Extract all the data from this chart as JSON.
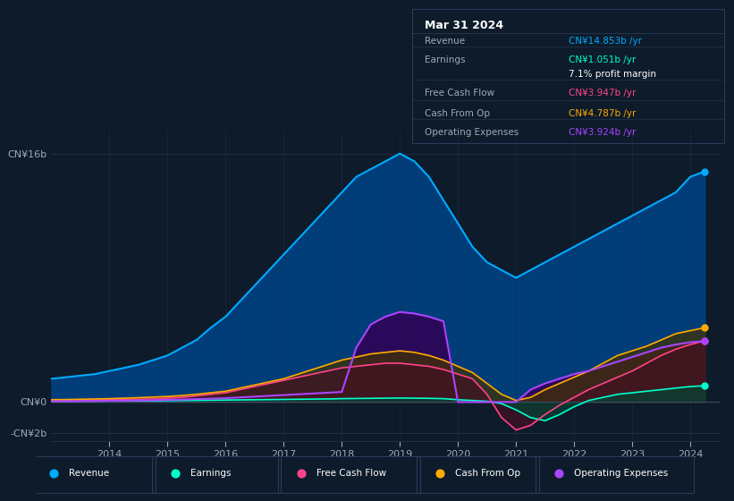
{
  "bg_color": "#0d1b2a",
  "plot_bg_color": "#0d1b2a",
  "grid_color": "#1e3048",
  "text_color": "#a0aab8",
  "title_color": "#ffffff",
  "years": [
    2013.0,
    2013.25,
    2013.5,
    2013.75,
    2014.0,
    2014.25,
    2014.5,
    2014.75,
    2015.0,
    2015.25,
    2015.5,
    2015.75,
    2016.0,
    2016.25,
    2016.5,
    2016.75,
    2017.0,
    2017.25,
    2017.5,
    2017.75,
    2018.0,
    2018.25,
    2018.5,
    2018.75,
    2019.0,
    2019.25,
    2019.5,
    2019.75,
    2020.0,
    2020.25,
    2020.5,
    2020.75,
    2021.0,
    2021.25,
    2021.5,
    2021.75,
    2022.0,
    2022.25,
    2022.5,
    2022.75,
    2023.0,
    2023.25,
    2023.5,
    2023.75,
    2024.0,
    2024.25
  ],
  "revenue": [
    1.5,
    1.6,
    1.7,
    1.8,
    2.0,
    2.2,
    2.4,
    2.7,
    3.0,
    3.5,
    4.0,
    4.8,
    5.5,
    6.5,
    7.5,
    8.5,
    9.5,
    10.5,
    11.5,
    12.5,
    13.5,
    14.5,
    15.0,
    15.5,
    16.0,
    15.5,
    14.5,
    13.0,
    11.5,
    10.0,
    9.0,
    8.5,
    8.0,
    8.5,
    9.0,
    9.5,
    10.0,
    10.5,
    11.0,
    11.5,
    12.0,
    12.5,
    13.0,
    13.5,
    14.5,
    14.853
  ],
  "earnings": [
    0.05,
    0.05,
    0.06,
    0.06,
    0.07,
    0.07,
    0.08,
    0.08,
    0.09,
    0.1,
    0.11,
    0.12,
    0.13,
    0.14,
    0.15,
    0.16,
    0.17,
    0.18,
    0.19,
    0.2,
    0.22,
    0.23,
    0.24,
    0.25,
    0.26,
    0.25,
    0.24,
    0.22,
    0.15,
    0.1,
    0.05,
    -0.1,
    -0.5,
    -1.0,
    -1.2,
    -0.8,
    -0.3,
    0.1,
    0.3,
    0.5,
    0.6,
    0.7,
    0.8,
    0.9,
    1.0,
    1.051
  ],
  "free_cash_flow": [
    0.1,
    0.1,
    0.12,
    0.12,
    0.15,
    0.15,
    0.18,
    0.2,
    0.25,
    0.3,
    0.4,
    0.5,
    0.6,
    0.8,
    1.0,
    1.2,
    1.4,
    1.6,
    1.8,
    2.0,
    2.2,
    2.3,
    2.4,
    2.5,
    2.5,
    2.4,
    2.3,
    2.1,
    1.8,
    1.5,
    0.5,
    -1.0,
    -1.8,
    -1.5,
    -0.8,
    -0.2,
    0.3,
    0.8,
    1.2,
    1.6,
    2.0,
    2.5,
    3.0,
    3.4,
    3.7,
    3.947
  ],
  "cash_from_op": [
    0.15,
    0.16,
    0.18,
    0.2,
    0.22,
    0.25,
    0.28,
    0.32,
    0.36,
    0.42,
    0.5,
    0.6,
    0.7,
    0.9,
    1.1,
    1.3,
    1.5,
    1.8,
    2.1,
    2.4,
    2.7,
    2.9,
    3.1,
    3.2,
    3.3,
    3.2,
    3.0,
    2.7,
    2.3,
    1.9,
    1.2,
    0.5,
    0.1,
    0.3,
    0.8,
    1.2,
    1.6,
    2.0,
    2.5,
    3.0,
    3.3,
    3.6,
    4.0,
    4.4,
    4.6,
    4.787
  ],
  "operating_expenses": [
    0.05,
    0.05,
    0.06,
    0.07,
    0.08,
    0.09,
    0.1,
    0.12,
    0.14,
    0.16,
    0.19,
    0.22,
    0.25,
    0.3,
    0.35,
    0.4,
    0.45,
    0.5,
    0.55,
    0.6,
    0.65,
    3.5,
    5.0,
    5.5,
    5.8,
    5.7,
    5.5,
    5.2,
    0.0,
    0.0,
    0.0,
    0.0,
    0.0,
    0.8,
    1.2,
    1.5,
    1.8,
    2.0,
    2.3,
    2.6,
    2.9,
    3.2,
    3.5,
    3.7,
    3.85,
    3.924
  ],
  "revenue_color": "#00aaff",
  "earnings_color": "#00ffcc",
  "fcf_color": "#ff4488",
  "cash_op_color": "#ffaa00",
  "opex_color": "#aa44ff",
  "revenue_fill": "#004488",
  "earnings_fill": "#004433",
  "fcf_fill": "#441122",
  "cash_op_fill": "#443300",
  "opex_fill": "#330055",
  "xlim": [
    2013.0,
    2024.5
  ],
  "ylim": [
    -2.5,
    17.5
  ],
  "ytick_vals": [
    -2,
    0,
    16
  ],
  "ytick_labels": [
    "-CN¥2b",
    "CN¥0",
    "CN¥16b"
  ],
  "xticks": [
    2014,
    2015,
    2016,
    2017,
    2018,
    2019,
    2020,
    2021,
    2022,
    2023,
    2024
  ],
  "legend_items": [
    "Revenue",
    "Earnings",
    "Free Cash Flow",
    "Cash From Op",
    "Operating Expenses"
  ],
  "legend_colors": [
    "#00aaff",
    "#00ffcc",
    "#ff4488",
    "#ffaa00",
    "#aa44ff"
  ],
  "info_box": {
    "title": "Mar 31 2024",
    "rows": [
      {
        "label": "Revenue",
        "value": "CN¥14.853b /yr",
        "value_color": "#00aaff"
      },
      {
        "label": "Earnings",
        "value": "CN¥1.051b /yr",
        "value_color": "#00ffcc"
      },
      {
        "label": "",
        "value": "7.1% profit margin",
        "value_color": "#ffffff"
      },
      {
        "label": "Free Cash Flow",
        "value": "CN¥3.947b /yr",
        "value_color": "#ff4488"
      },
      {
        "label": "Cash From Op",
        "value": "CN¥4.787b /yr",
        "value_color": "#ffaa00"
      },
      {
        "label": "Operating Expenses",
        "value": "CN¥3.924b /yr",
        "value_color": "#aa44ff"
      }
    ],
    "bg_color": "#0a1628",
    "border_color": "#2a3a5a",
    "text_color": "#a0aab8",
    "title_color": "#ffffff"
  }
}
